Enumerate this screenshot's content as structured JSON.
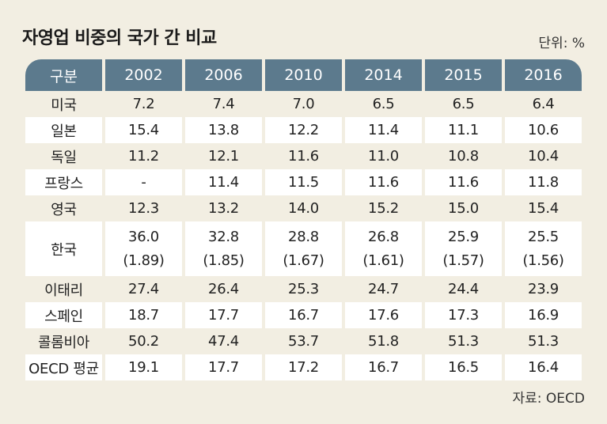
{
  "title": "자영업 비중의 국가 간 비교",
  "unit": "단위: %",
  "source": "자료: OECD",
  "header": [
    "구분",
    "2002",
    "2006",
    "2010",
    "2014",
    "2015",
    "2016"
  ],
  "rows": [
    {
      "country": "미국",
      "values": [
        "7.2",
        "7.4",
        "7.0",
        "6.5",
        "6.5",
        "6.4"
      ]
    },
    {
      "country": "일본",
      "values": [
        "15.4",
        "13.8",
        "12.2",
        "11.4",
        "11.1",
        "10.6"
      ]
    },
    {
      "country": "독일",
      "values": [
        "11.2",
        "12.1",
        "11.6",
        "11.0",
        "10.8",
        "10.4"
      ]
    },
    {
      "country": "프랑스",
      "values": [
        "-",
        "11.4",
        "11.5",
        "11.6",
        "11.6",
        "11.8"
      ]
    },
    {
      "country": "영국",
      "values": [
        "12.3",
        "13.2",
        "14.0",
        "15.2",
        "15.0",
        "15.4"
      ]
    },
    {
      "country": "한국",
      "values": [
        "36.0",
        "32.8",
        "28.8",
        "26.8",
        "25.9",
        "25.5"
      ],
      "sub": [
        "(1.89)",
        "(1.85)",
        "(1.67)",
        "(1.61)",
        "(1.57)",
        "(1.56)"
      ]
    },
    {
      "country": "이태리",
      "values": [
        "27.4",
        "26.4",
        "25.3",
        "24.7",
        "24.4",
        "23.9"
      ]
    },
    {
      "country": "스페인",
      "values": [
        "18.7",
        "17.7",
        "16.7",
        "17.6",
        "17.3",
        "16.9"
      ]
    },
    {
      "country": "콜롬비아",
      "values": [
        "50.2",
        "47.4",
        "53.7",
        "51.8",
        "51.3",
        "51.3"
      ]
    },
    {
      "country": "OECD 평균",
      "values": [
        "19.1",
        "17.7",
        "17.2",
        "16.7",
        "16.5",
        "16.4"
      ]
    }
  ]
}
